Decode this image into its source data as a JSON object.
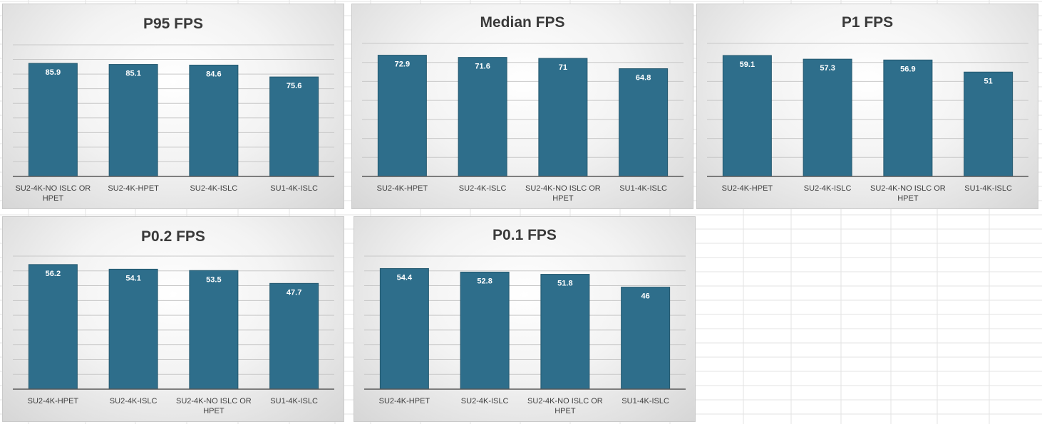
{
  "colors": {
    "bar": "#2e6e8b",
    "bar_edge": "#24596f",
    "grid": "#c8c8c8",
    "axis": "#595959"
  },
  "chart_data": [
    {
      "type": "bar",
      "title": "P95 FPS",
      "categories": [
        "SU2-4K-NO ISLC OR HPET",
        "SU2-4K-HPET",
        "SU2-4K-ISLC",
        "SU1-4K-ISLC"
      ],
      "values": [
        85.9,
        85.1,
        84.6,
        75.6
      ],
      "ylim": [
        0,
        100
      ]
    },
    {
      "type": "bar",
      "title": "Median FPS",
      "categories": [
        "SU2-4K-HPET",
        "SU2-4K-ISLC",
        "SU2-4K-NO ISLC OR HPET",
        "SU1-4K-ISLC"
      ],
      "values": [
        72.9,
        71.6,
        71,
        64.8
      ],
      "ylim": [
        0,
        80
      ]
    },
    {
      "type": "bar",
      "title": "P1 FPS",
      "categories": [
        "SU2-4K-HPET",
        "SU2-4K-ISLC",
        "SU2-4K-NO ISLC OR HPET",
        "SU1-4K-ISLC"
      ],
      "values": [
        59.1,
        57.3,
        56.9,
        51
      ],
      "ylim": [
        0,
        65
      ]
    },
    {
      "type": "bar",
      "title": "P0.2 FPS",
      "categories": [
        "SU2-4K-HPET",
        "SU2-4K-ISLC",
        "SU2-4K-NO ISLC OR HPET",
        "SU1-4K-ISLC"
      ],
      "values": [
        56.2,
        54.1,
        53.5,
        47.7
      ],
      "ylim": [
        0,
        60
      ]
    },
    {
      "type": "bar",
      "title": "P0.1 FPS",
      "categories": [
        "SU2-4K-HPET",
        "SU2-4K-ISLC",
        "SU2-4K-NO ISLC OR HPET",
        "SU1-4K-ISLC"
      ],
      "values": [
        54.4,
        52.8,
        51.8,
        46
      ],
      "ylim": [
        0,
        60
      ]
    }
  ]
}
